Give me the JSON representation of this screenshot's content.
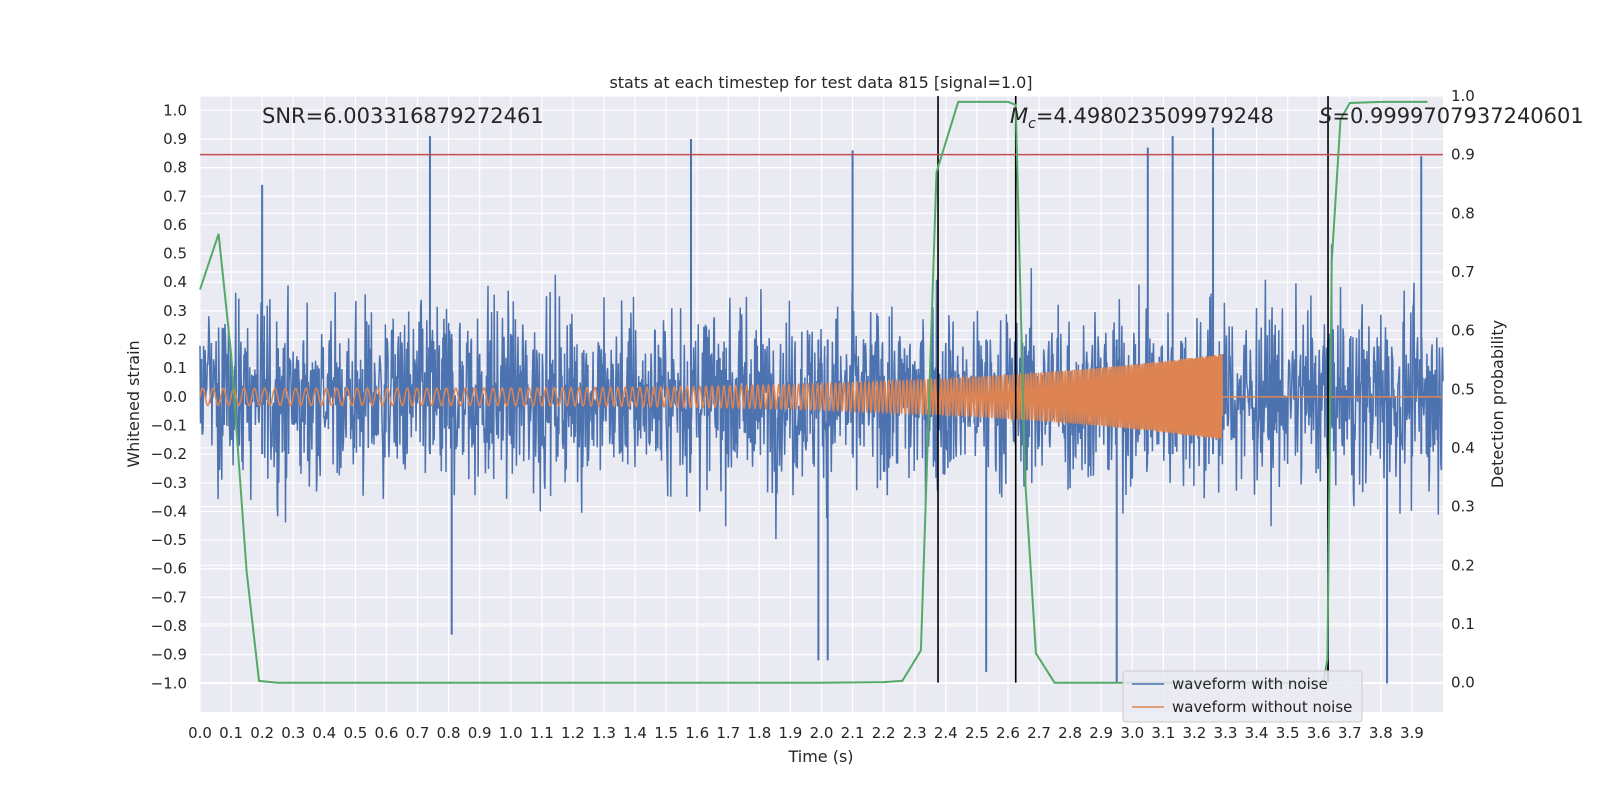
{
  "chart_data": {
    "type": "line",
    "title": "stats at each timestep for test data 815 [signal=1.0]",
    "xlabel": "Time (s)",
    "ylabel_left": "Whitened strain",
    "ylabel_right": "Detection probability",
    "xlim": [
      0.0,
      4.0
    ],
    "ylim_left": [
      -1.1,
      1.05
    ],
    "ylim_right": [
      -0.05,
      1.0
    ],
    "x_ticks": [
      "0.0",
      "0.1",
      "0.2",
      "0.3",
      "0.4",
      "0.5",
      "0.6",
      "0.7",
      "0.8",
      "0.9",
      "1.0",
      "1.1",
      "1.2",
      "1.3",
      "1.4",
      "1.5",
      "1.6",
      "1.7",
      "1.8",
      "1.9",
      "2.0",
      "2.1",
      "2.2",
      "2.3",
      "2.4",
      "2.5",
      "2.6",
      "2.7",
      "2.8",
      "2.9",
      "3.0",
      "3.1",
      "3.2",
      "3.3",
      "3.4",
      "3.5",
      "3.6",
      "3.7",
      "3.8",
      "3.9"
    ],
    "y_ticks_left": [
      "1.0",
      "0.9",
      "0.8",
      "0.7",
      "0.6",
      "0.5",
      "0.4",
      "0.3",
      "0.2",
      "0.1",
      "0.0",
      "−0.1",
      "−0.2",
      "−0.3",
      "−0.4",
      "−0.5",
      "−0.6",
      "−0.7",
      "−0.8",
      "−0.9",
      "−1.0"
    ],
    "y_ticks_right": [
      "1.0",
      "0.9",
      "0.8",
      "0.7",
      "0.6",
      "0.5",
      "0.4",
      "0.3",
      "0.2",
      "0.1",
      "0.0"
    ],
    "annotations": {
      "snr": "SNR=6.003316879272461",
      "mc_symbol": "M",
      "mc_sub": "c",
      "mc_value": "=4.498023509979248",
      "s_symbol": "S",
      "s_value": "=0.9999707937240601"
    },
    "threshold_right": 0.9,
    "vertical_lines_x": [
      2.375,
      2.625,
      3.63
    ],
    "legend_position": "lower right",
    "series": [
      {
        "name": "waveform with noise",
        "color": "#4c72b0",
        "axis": "left",
        "description": "noisy whitened strain, bulk amplitude about ±0.45, spikes to about ±0.9",
        "peaks_up": [
          [
            0.2,
            0.74
          ],
          [
            0.74,
            0.91
          ],
          [
            1.58,
            0.9
          ],
          [
            2.1,
            0.86
          ],
          [
            3.05,
            0.87
          ],
          [
            3.13,
            0.91
          ],
          [
            3.26,
            0.94
          ],
          [
            3.93,
            0.84
          ]
        ],
        "peaks_down": [
          [
            0.81,
            -0.83
          ],
          [
            1.99,
            -0.92
          ],
          [
            2.02,
            -0.92
          ],
          [
            2.53,
            -0.96
          ],
          [
            2.95,
            -1.0
          ],
          [
            3.63,
            -0.96
          ],
          [
            3.82,
            -1.0
          ]
        ]
      },
      {
        "name": "waveform without noise",
        "color": "#dd8452",
        "axis": "left",
        "description": "chirp: amplitude about 0.03 rising to 0.15 with increasing frequency, ends at 3.29 s, then 0",
        "x_end": 3.29,
        "amplitude_start": 0.03,
        "amplitude_end": 0.15
      },
      {
        "name": "",
        "color": "#55a868",
        "axis": "right",
        "x": [
          0.0,
          0.06,
          0.1,
          0.15,
          0.19,
          0.25,
          0.5,
          1.0,
          1.5,
          2.0,
          2.2,
          2.26,
          2.32,
          2.37,
          2.44,
          2.55,
          2.6,
          2.625,
          2.655,
          2.69,
          2.75,
          2.8,
          3.0,
          3.5,
          3.615,
          3.628,
          3.642,
          3.67,
          3.7,
          3.8,
          3.95
        ],
        "y": [
          0.67,
          0.765,
          0.56,
          0.19,
          0.003,
          0.0,
          0.0,
          0.0,
          0.0,
          0.0,
          0.001,
          0.003,
          0.055,
          0.87,
          0.99,
          0.99,
          0.99,
          0.985,
          0.35,
          0.05,
          0.0,
          0.0,
          0.0,
          0.0,
          0.0,
          0.04,
          0.72,
          0.96,
          0.988,
          0.99,
          0.99
        ]
      },
      {
        "name": "",
        "color": "#c44e52",
        "axis": "right",
        "description": "horizontal threshold line at 0.9"
      }
    ]
  }
}
